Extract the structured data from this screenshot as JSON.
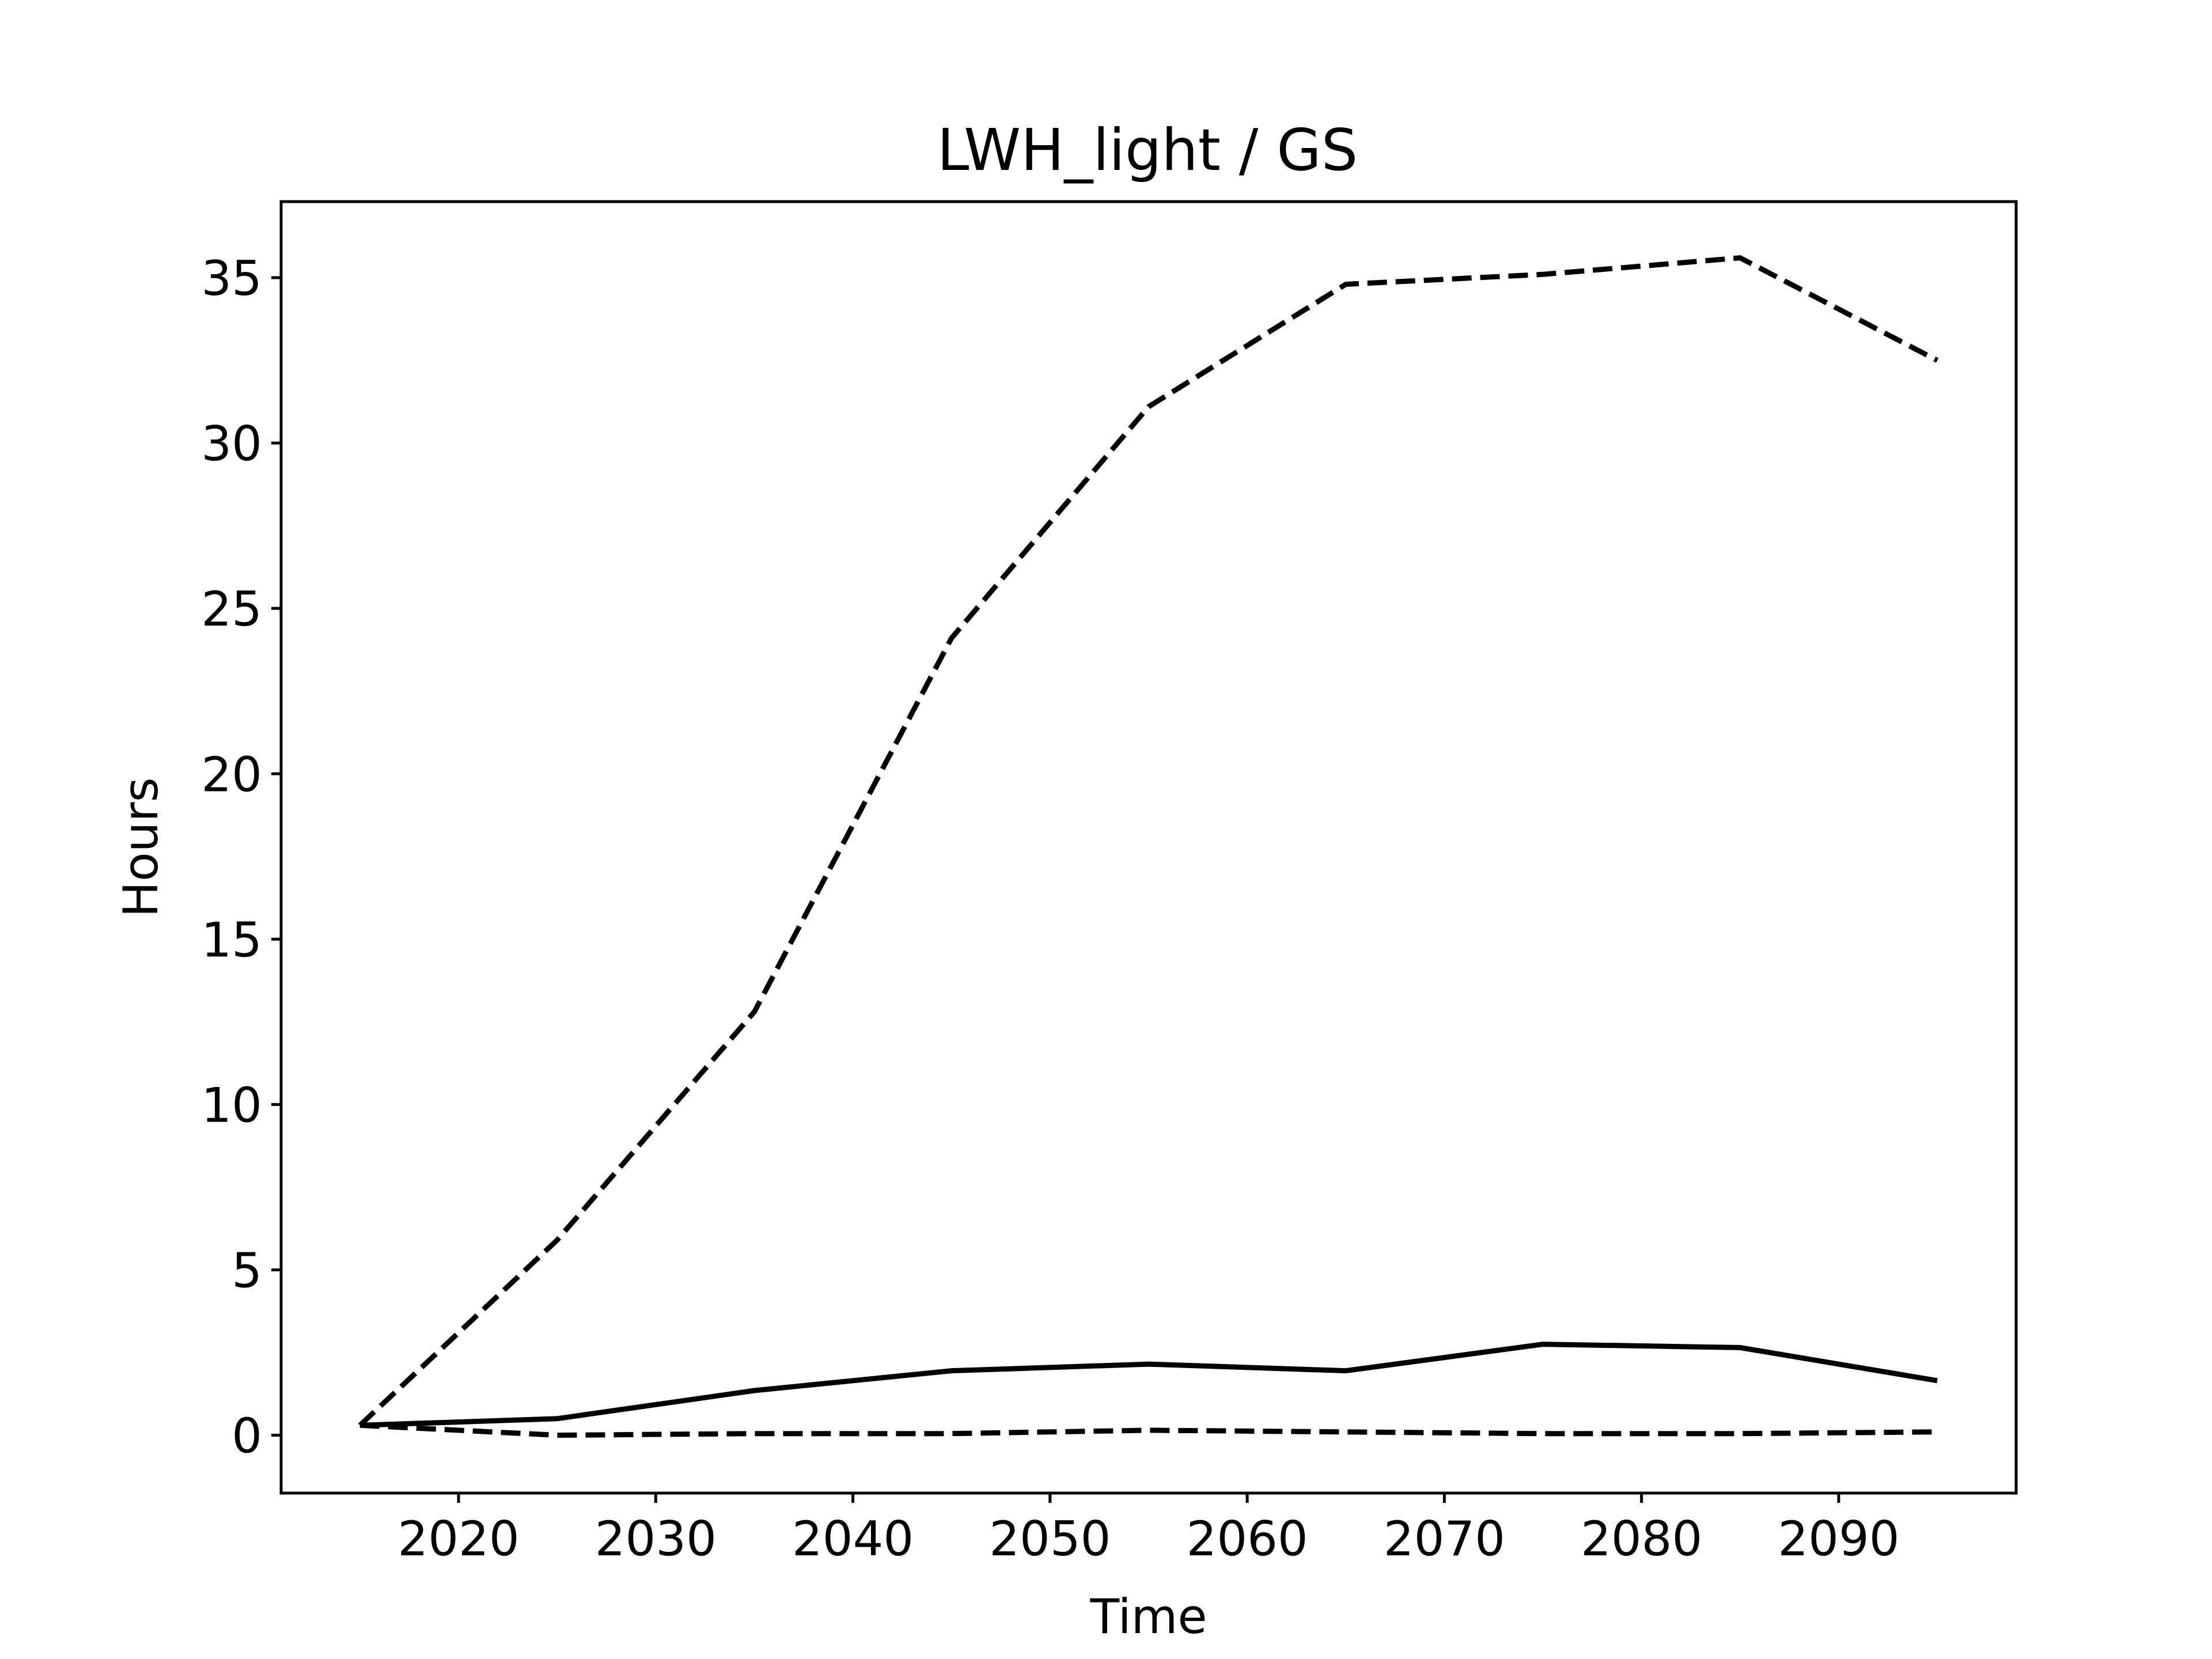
{
  "chart_data": {
    "type": "line",
    "title": "LWH_light / GS",
    "xlabel": "Time",
    "ylabel": "Hours",
    "xlim": [
      2011,
      2099
    ],
    "ylim": [
      -1.75,
      37.3
    ],
    "x_ticks": [
      2020,
      2030,
      2040,
      2050,
      2060,
      2070,
      2080,
      2090
    ],
    "y_ticks": [
      0,
      5,
      10,
      15,
      20,
      25,
      30,
      35
    ],
    "grid": false,
    "legend": "none",
    "x": [
      2015,
      2025,
      2035,
      2045,
      2055,
      2065,
      2075,
      2085,
      2095
    ],
    "series": [
      {
        "style": "dashed",
        "color": "#000000",
        "values": [
          0.3,
          5.9,
          12.8,
          24.1,
          31.1,
          34.8,
          35.1,
          35.6,
          32.5
        ]
      },
      {
        "style": "solid",
        "color": "#000000",
        "values": [
          0.3,
          0.5,
          1.35,
          1.95,
          2.15,
          1.95,
          2.75,
          2.65,
          1.65
        ]
      },
      {
        "style": "dashed",
        "color": "#000000",
        "values": [
          0.3,
          0.0,
          0.05,
          0.05,
          0.15,
          0.1,
          0.05,
          0.05,
          0.1
        ]
      }
    ]
  }
}
